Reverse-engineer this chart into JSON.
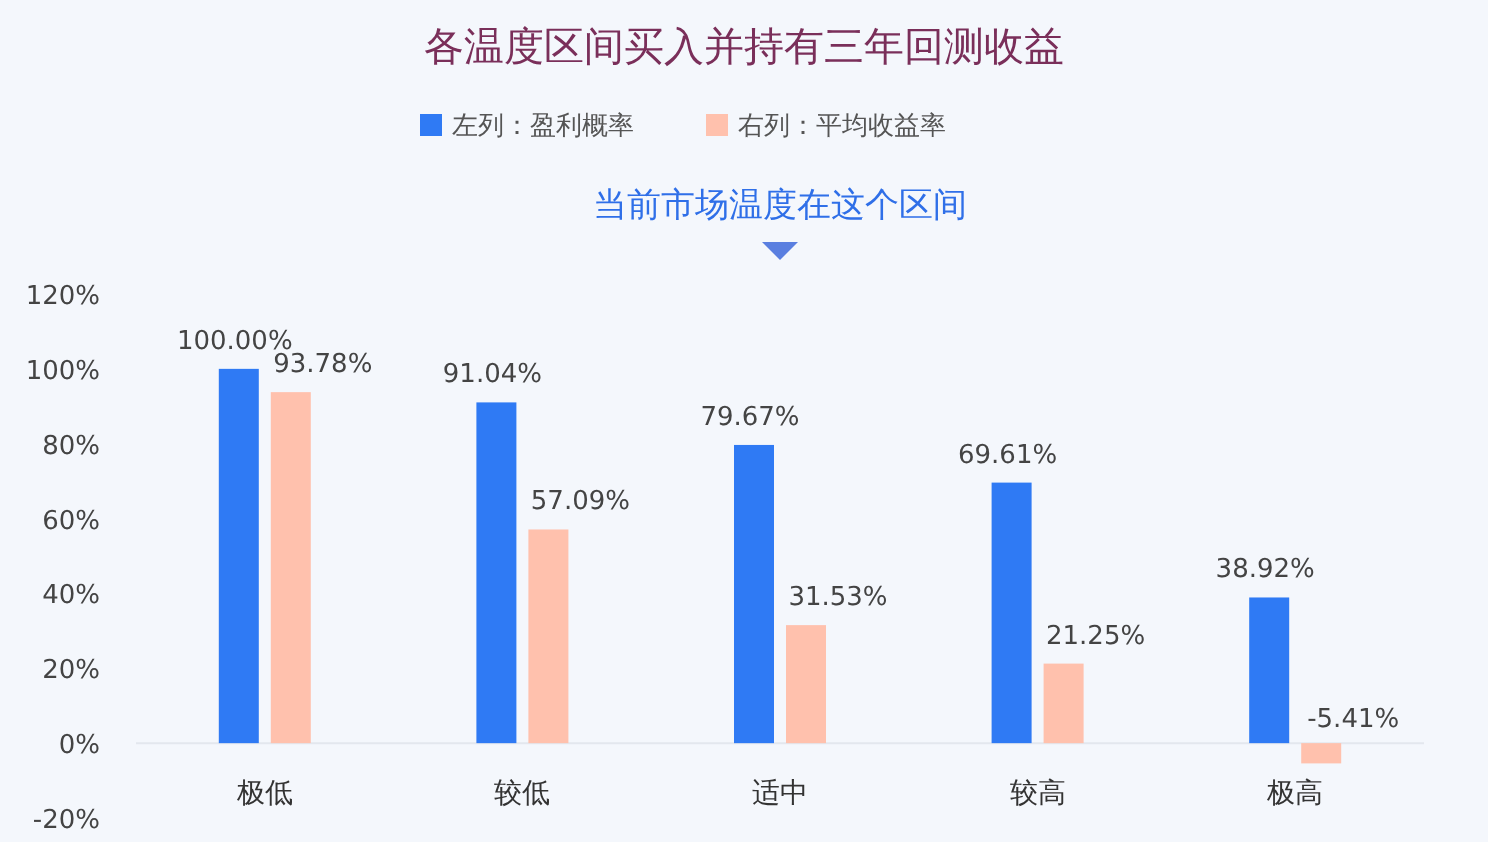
{
  "chart_data": {
    "type": "bar",
    "title": "各温度区间买入并持有三年回测收益",
    "categories": [
      "极低",
      "较低",
      "适中",
      "较高",
      "极高"
    ],
    "series": [
      {
        "name": "左列：盈利概率",
        "color": "#2f7af4",
        "values": [
          100.0,
          91.04,
          79.67,
          69.61,
          38.92
        ],
        "value_labels": [
          "100.00%",
          "91.04%",
          "79.67%",
          "69.61%",
          "38.92%"
        ]
      },
      {
        "name": "右列：平均收益率",
        "color": "#ffc1ad",
        "values": [
          93.78,
          57.09,
          31.53,
          21.25,
          -5.41
        ],
        "value_labels": [
          "93.78%",
          "57.09%",
          "31.53%",
          "21.25%",
          "-5.41%"
        ]
      }
    ],
    "ylim": [
      -20,
      120
    ],
    "yticks": [
      {
        "value": -20,
        "label": "-20%"
      },
      {
        "value": 0,
        "label": "0%"
      },
      {
        "value": 20,
        "label": "20%"
      },
      {
        "value": 40,
        "label": "40%"
      },
      {
        "value": 60,
        "label": "60%"
      },
      {
        "value": 80,
        "label": "80%"
      },
      {
        "value": 100,
        "label": "100%"
      },
      {
        "value": 120,
        "label": "120%"
      }
    ],
    "legend": "top",
    "annotations": [
      "当前市场温度在这个区间"
    ]
  }
}
